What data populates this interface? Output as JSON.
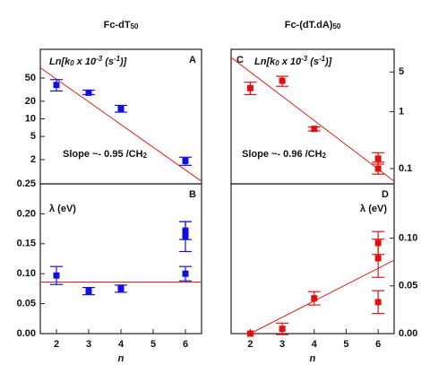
{
  "chart_data": [
    {
      "type": "scatter",
      "panel": "A",
      "title_color": "#1f3fd0",
      "title": [
        {
          "text": "Fc-dT"
        },
        {
          "text": "50",
          "shift": "sub"
        }
      ],
      "y_label": [
        {
          "text": "Ln[k"
        },
        {
          "text": "0",
          "shift": "sub"
        },
        {
          "text": " x 10"
        },
        {
          "text": "-3",
          "shift": "super"
        },
        {
          "text": " (s"
        },
        {
          "text": "-1",
          "shift": "super"
        },
        {
          "text": ")]"
        }
      ],
      "annotation": [
        {
          "text": "Slope ~- 0.95 /CH"
        },
        {
          "text": "2",
          "shift": "sub"
        }
      ],
      "log_y": true,
      "y_axis_side": "left",
      "xlim": [
        1.5,
        6.5
      ],
      "ylim": [
        0.77,
        155
      ],
      "yticks": [
        2,
        5,
        10,
        20,
        50
      ],
      "series": [
        {
          "color": "#1010e0",
          "x": [
            2,
            3,
            4,
            6
          ],
          "values": [
            38,
            28,
            15,
            1.9
          ],
          "low": [
            30,
            26,
            13,
            1.6
          ],
          "high": [
            47,
            31,
            17,
            2.2
          ]
        }
      ],
      "fit": {
        "color": "#e02020",
        "x": [
          1.5,
          6.5
        ],
        "y": [
          75,
          0.85
        ]
      }
    },
    {
      "type": "scatter",
      "panel": "B",
      "x_label": "n",
      "y_label": [
        {
          "text": "λ (eV)"
        }
      ],
      "log_y": false,
      "y_axis_side": "left",
      "xlim": [
        1.5,
        6.5
      ],
      "xticks": [
        2,
        3,
        4,
        5,
        6
      ],
      "ylim": [
        0,
        0.25
      ],
      "yticks": [
        {
          "value": 0,
          "label": "0.00"
        },
        {
          "value": 0.05,
          "label": "0.05"
        },
        {
          "value": 0.1,
          "label": "0.10"
        },
        {
          "value": 0.15,
          "label": "0.15"
        },
        {
          "value": 0.2,
          "label": "0.20"
        },
        {
          "value": 0.25,
          "label": "0.25"
        }
      ],
      "series": [
        {
          "color": "#1010e0",
          "x": [
            2,
            3,
            4,
            6,
            6,
            6
          ],
          "values": [
            0.097,
            0.071,
            0.075,
            0.1,
            0.162,
            0.172
          ],
          "low": [
            0.082,
            0.065,
            0.069,
            0.088,
            0.137,
            0.157
          ],
          "high": [
            0.112,
            0.077,
            0.081,
            0.112,
            0.187,
            0.187
          ]
        }
      ],
      "fit": {
        "color": "#e02020",
        "x": [
          1.5,
          6.5
        ],
        "y": [
          0.086,
          0.086
        ]
      }
    },
    {
      "type": "scatter",
      "panel": "C",
      "title_color": "#e0201b",
      "title": [
        {
          "text": "Fc-(dT.dA)"
        },
        {
          "text": "50",
          "shift": "sub"
        }
      ],
      "y_label": [
        {
          "text": "Ln[k"
        },
        {
          "text": "0",
          "shift": "sub"
        },
        {
          "text": " x 10"
        },
        {
          "text": "-3",
          "shift": "super"
        },
        {
          "text": " (s"
        },
        {
          "text": "-1",
          "shift": "super"
        },
        {
          "text": ")]"
        }
      ],
      "annotation": [
        {
          "text": "Slope ~- 0.96 /CH"
        },
        {
          "text": "2",
          "shift": "sub"
        }
      ],
      "log_y": true,
      "y_axis_side": "right",
      "xlim": [
        1.4,
        6.5
      ],
      "ylim": [
        0.054,
        12.5
      ],
      "yticks": [
        0.1,
        1,
        5
      ],
      "series": [
        {
          "color": "#e01010",
          "x": [
            2,
            3,
            4,
            6,
            6
          ],
          "values": [
            2.6,
            3.5,
            0.5,
            0.15,
            0.1
          ],
          "low": [
            2.0,
            2.8,
            0.46,
            0.12,
            0.08
          ],
          "high": [
            3.3,
            4.2,
            0.54,
            0.19,
            0.13
          ]
        }
      ],
      "fit": {
        "color": "#e02020",
        "x": [
          1.4,
          6.5
        ],
        "y": [
          9,
          0.06
        ]
      }
    },
    {
      "type": "scatter",
      "panel": "D",
      "x_label": "n",
      "y_label": [
        {
          "text": "λ (eV)"
        }
      ],
      "log_y": false,
      "y_axis_side": "right",
      "xlim": [
        1.4,
        6.5
      ],
      "xticks": [
        2,
        3,
        4,
        5,
        6
      ],
      "ylim": [
        0,
        0.157
      ],
      "yticks": [
        {
          "value": 0,
          "label": "0.00"
        },
        {
          "value": 0.05,
          "label": "0.05"
        },
        {
          "value": 0.1,
          "label": "0.10"
        }
      ],
      "series": [
        {
          "color": "#e01010",
          "x": [
            2,
            3,
            4,
            6,
            6,
            6
          ],
          "values": [
            0,
            0.005,
            0.037,
            0.095,
            0.079,
            0.033
          ],
          "low": [
            0,
            -0.001,
            0.03,
            0.083,
            0.059,
            0.021
          ],
          "high": [
            0,
            0.011,
            0.044,
            0.107,
            0.099,
            0.045
          ]
        }
      ],
      "fit": {
        "color": "#e02020",
        "x": [
          2,
          6.5
        ],
        "y": [
          0,
          0.077
        ]
      }
    }
  ]
}
